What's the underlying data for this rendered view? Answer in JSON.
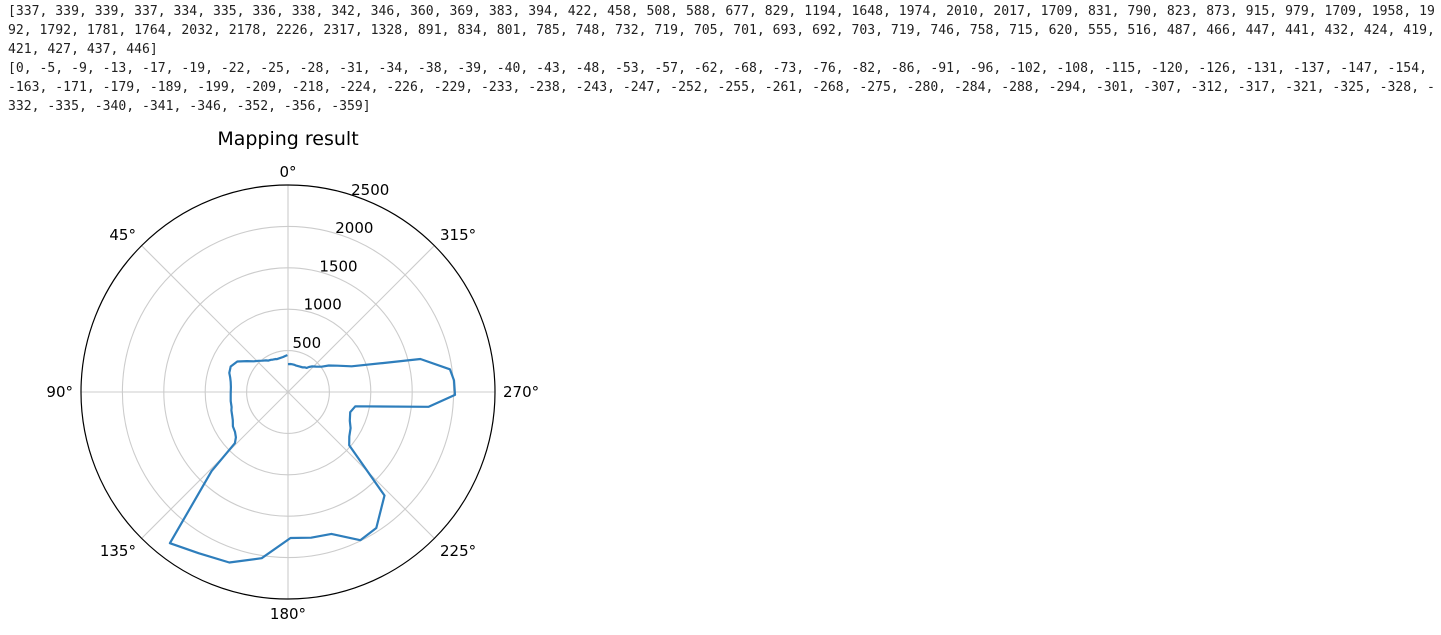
{
  "output": {
    "line1": "[337, 339, 339, 337, 334, 335, 336, 338, 342, 346, 360, 369, 383, 394, 422, 458, 508, 588, 677, 829, 1194, 1648, 1974, 2010, 2017, 1709, 831, 790, 823, 873, 915, 979, 1709, 1958, 1992, 1792, 1781, 1764, 2032, 2178, 2226, 2317, 1328, 891, 834, 801, 785, 748, 732, 719, 705, 701, 693, 692, 703, 719, 746, 758, 715, 620, 555, 516, 487, 466, 447, 441, 432, 424, 419, 421, 427, 437, 446]",
    "line2": "[0, -5, -9, -13, -17, -19, -22, -25, -28, -31, -34, -38, -39, -40, -43, -48, -53, -57, -62, -68, -73, -76, -82, -86, -91, -96, -102, -108, -115, -120, -126, -131, -137, -147, -154, -163, -171, -179, -189, -199, -209, -218, -224, -226, -229, -233, -238, -243, -247, -252, -255, -261, -268, -275, -280, -284, -288, -294, -301, -307, -312, -317, -321, -325, -328, -332, -335, -340, -341, -346, -352, -356, -359]"
  },
  "chart_data": {
    "type": "line",
    "projection": "polar",
    "title": "Mapping result",
    "theta_zero_location": "top",
    "theta_direction": "counterclockwise",
    "rlim": [
      0,
      2500
    ],
    "r_ticks": [
      500,
      1000,
      1500,
      2000,
      2500
    ],
    "theta_ticks_deg": [
      0,
      45,
      90,
      135,
      180,
      225,
      270,
      315
    ],
    "theta_tick_labels": [
      "0°",
      "45°",
      "90°",
      "135°",
      "180°",
      "225°",
      "270°",
      "315°"
    ],
    "grid": true,
    "line_color": "#2e7ebc",
    "series": [
      {
        "r": [
          337,
          339,
          339,
          337,
          334,
          335,
          336,
          338,
          342,
          346,
          360,
          369,
          383,
          394,
          422,
          458,
          508,
          588,
          677,
          829,
          1194,
          1648,
          1974,
          2010,
          2017,
          1709,
          831,
          790,
          823,
          873,
          915,
          979,
          1709,
          1958,
          1992,
          1792,
          1781,
          1764,
          2032,
          2178,
          2226,
          2317,
          1328,
          891,
          834,
          801,
          785,
          748,
          732,
          719,
          705,
          701,
          693,
          692,
          703,
          719,
          746,
          758,
          715,
          620,
          555,
          516,
          487,
          466,
          447,
          441,
          432,
          424,
          419,
          421,
          427,
          437,
          446
        ],
        "theta_deg": [
          0,
          -5,
          -9,
          -13,
          -17,
          -19,
          -22,
          -25,
          -28,
          -31,
          -34,
          -38,
          -39,
          -40,
          -43,
          -48,
          -53,
          -57,
          -62,
          -68,
          -73,
          -76,
          -82,
          -86,
          -91,
          -96,
          -102,
          -108,
          -115,
          -120,
          -126,
          -131,
          -137,
          -147,
          -154,
          -163,
          -171,
          -179,
          -189,
          -199,
          -209,
          -218,
          -224,
          -226,
          -229,
          -233,
          -238,
          -243,
          -247,
          -252,
          -255,
          -261,
          -268,
          -275,
          -280,
          -284,
          -288,
          -294,
          -301,
          -307,
          -312,
          -317,
          -321,
          -325,
          -328,
          -332,
          -335,
          -340,
          -341,
          -346,
          -352,
          -356,
          -359
        ]
      }
    ]
  }
}
